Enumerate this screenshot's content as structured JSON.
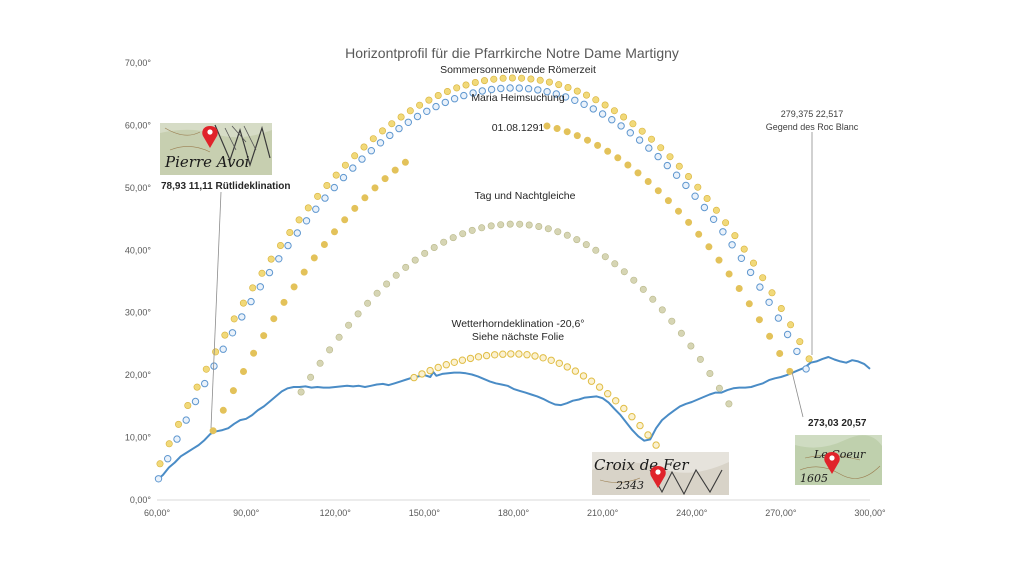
{
  "chart_data": {
    "type": "scatter",
    "title": "Horizontprofil für die Pfarrkirche Notre Dame Martigny",
    "xlabel": "",
    "ylabel": "",
    "xlim": [
      60,
      300
    ],
    "ylim": [
      0,
      70
    ],
    "x_ticks": [
      "60,00°",
      "90,00°",
      "120,00°",
      "150,00°",
      "180,00°",
      "210,00°",
      "240,00°",
      "270,00°",
      "300,00°"
    ],
    "y_ticks": [
      "0,00°",
      "10,00°",
      "20,00°",
      "30,00°",
      "40,00°",
      "50,00°",
      "60,00°",
      "70,00°"
    ],
    "grid": false,
    "colors": {
      "horizon": "#4a8cc6",
      "sun_gold": "#e6c24a",
      "sun_blue": "#7fb0e0",
      "equinox": "#c9c89a",
      "leader": "#8c8c8c"
    },
    "horizon": {
      "type": "line",
      "points": [
        [
          60,
          3.2
        ],
        [
          62,
          4
        ],
        [
          64,
          5.2
        ],
        [
          66,
          6
        ],
        [
          68,
          7
        ],
        [
          70,
          7.6
        ],
        [
          72,
          8.2
        ],
        [
          74,
          8.8
        ],
        [
          76,
          9.6
        ],
        [
          78,
          10.6
        ],
        [
          80,
          11
        ],
        [
          82,
          11.2
        ],
        [
          84,
          11.5
        ],
        [
          86,
          12.2
        ],
        [
          88,
          12.8
        ],
        [
          90,
          13
        ],
        [
          92,
          13.6
        ],
        [
          94,
          14.4
        ],
        [
          96,
          15
        ],
        [
          98,
          15.8
        ],
        [
          100,
          16.6
        ],
        [
          102,
          17.4
        ],
        [
          104,
          17.9
        ],
        [
          106,
          18.1
        ],
        [
          108,
          18.1
        ],
        [
          110,
          18.2
        ],
        [
          112,
          18
        ],
        [
          114,
          18.1
        ],
        [
          116,
          18
        ],
        [
          118,
          18
        ],
        [
          120,
          18.1
        ],
        [
          122,
          18.2
        ],
        [
          124,
          18.3
        ],
        [
          126,
          18.2
        ],
        [
          128,
          18.3
        ],
        [
          130,
          18.1
        ],
        [
          132,
          18.3
        ],
        [
          134,
          18.5
        ],
        [
          136,
          18.6
        ],
        [
          138,
          18.4
        ],
        [
          140,
          18.7
        ],
        [
          142,
          19
        ],
        [
          144,
          19.3
        ],
        [
          146,
          19.6
        ],
        [
          148,
          19.8
        ],
        [
          150,
          20
        ],
        [
          152,
          19.7
        ],
        [
          153,
          20.5
        ],
        [
          154,
          19.9
        ],
        [
          156,
          20.2
        ],
        [
          158,
          20.3
        ],
        [
          160,
          20.4
        ],
        [
          162,
          20.4
        ],
        [
          164,
          20.3
        ],
        [
          166,
          20.1
        ],
        [
          168,
          19.8
        ],
        [
          170,
          19.4
        ],
        [
          172,
          19
        ],
        [
          174,
          18.7
        ],
        [
          176,
          18.5
        ],
        [
          178,
          18.3
        ],
        [
          180,
          17.8
        ],
        [
          182,
          17.5
        ],
        [
          184,
          17.2
        ],
        [
          186,
          16.9
        ],
        [
          188,
          16.6
        ],
        [
          190,
          16.2
        ],
        [
          192,
          15.7
        ],
        [
          194,
          15.3
        ],
        [
          196,
          15.2
        ],
        [
          198,
          15.5
        ],
        [
          200,
          15.9
        ],
        [
          202,
          16.1
        ],
        [
          204,
          16.4
        ],
        [
          206,
          16.5
        ],
        [
          208,
          16.6
        ],
        [
          210,
          16.3
        ],
        [
          212,
          15.6
        ],
        [
          214,
          14.6
        ],
        [
          216,
          13.6
        ],
        [
          218,
          12.4
        ],
        [
          220,
          11.2
        ],
        [
          222,
          10.2
        ],
        [
          224,
          9.5
        ],
        [
          226,
          9.7
        ],
        [
          228,
          11.5
        ],
        [
          230,
          12.8
        ],
        [
          232,
          13.6
        ],
        [
          234,
          14.3
        ],
        [
          236,
          15
        ],
        [
          238,
          15.4
        ],
        [
          240,
          15.7
        ],
        [
          242,
          16.1
        ],
        [
          244,
          16.5
        ],
        [
          246,
          16.9
        ],
        [
          248,
          17.2
        ],
        [
          250,
          17.2
        ],
        [
          252,
          17.6
        ],
        [
          254,
          17.9
        ],
        [
          256,
          18
        ],
        [
          258,
          18
        ],
        [
          260,
          18.1
        ],
        [
          262,
          18.4
        ],
        [
          264,
          18.7
        ],
        [
          266,
          19.2
        ],
        [
          268,
          19.5
        ],
        [
          270,
          19.7
        ],
        [
          272,
          20
        ],
        [
          274,
          20.4
        ],
        [
          276,
          20.8
        ],
        [
          278,
          21.2
        ],
        [
          280,
          22
        ],
        [
          282,
          22.2
        ],
        [
          284,
          22.6
        ],
        [
          286,
          22.9
        ],
        [
          288,
          22.5
        ],
        [
          290,
          22.2
        ],
        [
          292,
          22
        ],
        [
          294,
          22.4
        ],
        [
          296,
          22.2
        ],
        [
          298,
          21.8
        ],
        [
          300,
          21
        ]
      ]
    },
    "sun_paths": [
      {
        "label": "Sommersonnenwende Römerzeit",
        "color": "#e6c24a",
        "fill": "#f1d97a",
        "stroke": "#d8b23a",
        "hollow": false,
        "az_start": 61,
        "az_end": 279.5,
        "peak": 67.6,
        "alt_start": 5.8,
        "alt_end": 22.6,
        "n": 71
      },
      {
        "label": "Maria Heimsuchung",
        "color": "#7fb0e0",
        "fill": "#eaf2fb",
        "stroke": "#5f97cf",
        "hollow": true,
        "az_start": 60.5,
        "az_end": 278.5,
        "peak": 66.0,
        "alt_start": 3.4,
        "alt_end": 21.0,
        "n": 71
      },
      {
        "label": "01.08.1291",
        "color": "#e6c24a",
        "fill": "#e3c25a",
        "stroke": "#e3c25a",
        "hollow": false,
        "az_start": 78.9,
        "az_end": 273,
        "peak": 60.5,
        "alt_start": 11.1,
        "alt_end": 20.6,
        "n": 58,
        "gap": [
          146,
          190
        ]
      },
      {
        "label": "Tag und Nachtgleiche",
        "color": "#c9c89a",
        "fill": "#d6d5b4",
        "stroke": "#b9b88a",
        "hollow": false,
        "az_start": 108.5,
        "az_end": 252.5,
        "peak": 44.2,
        "alt_start": 17.3,
        "alt_end": 15.4,
        "n": 46
      },
      {
        "label": "Wetterhorndeklination -20,6°",
        "color": "#e6c24a",
        "fill": "#fbf1d0",
        "stroke": "#e0bd45",
        "hollow": true,
        "az_start": 146.5,
        "az_end": 228,
        "peak": 23.4,
        "alt_start": 19.6,
        "alt_end": 8.8,
        "n": 31
      }
    ],
    "annotations": [
      {
        "text": "Sommersonnenwende Römerzeit",
        "x": 180,
        "y": 68.2
      },
      {
        "text": "Maria Heimsuchung",
        "x": 180,
        "y": 64.3
      },
      {
        "text": "01.08.1291",
        "x": 180,
        "y": 59.8
      },
      {
        "text": "Tag und Nachtgleiche",
        "x": 180,
        "y": 48.5
      },
      {
        "text": "Wetterhorndeklination -20,6°",
        "x": 180,
        "y": 27.9
      },
      {
        "text": "Siehe nächste Folie",
        "x": 180,
        "y": 26.1
      }
    ],
    "callouts": [
      {
        "text": "78,93 11,11 Rütlideklination",
        "x": 78.93,
        "y": 11.11
      },
      {
        "text": "279,375 22,517",
        "x": 279.375,
        "y": 22.517
      },
      {
        "text": "Gegend des Roc Blanc",
        "x": 279.375,
        "y": 22.517
      },
      {
        "text": "273,03 20,57",
        "x": 273.03,
        "y": 20.57
      }
    ],
    "map_labels": {
      "pierre_avoi": "Pierre Avoi",
      "croix_de_fer": "Croix de Fer",
      "croix_de_fer_alt": "2343",
      "le_coeur": "Le Coeur",
      "le_coeur_alt": "1605"
    }
  }
}
